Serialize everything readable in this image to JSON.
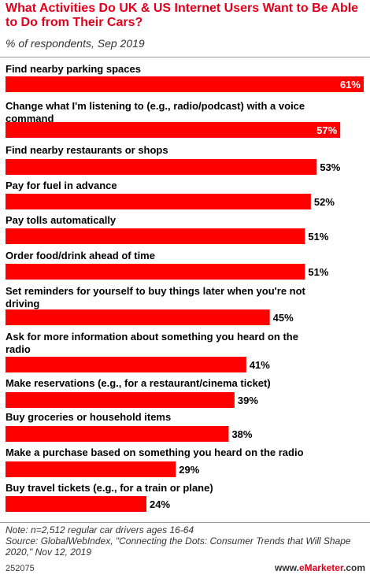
{
  "header": {
    "title": "What Activities Do UK & US Internet Users Want to Be Able to Do from Their Cars?",
    "subtitle": "% of respondents, Sep 2019"
  },
  "chart_data": {
    "type": "bar",
    "orientation": "horizontal",
    "title": "What Activities Do UK & US Internet Users Want to Be Able to Do from Their Cars?",
    "subtitle": "% of respondents, Sep 2019",
    "categories": [
      "Find nearby parking spaces",
      "Change what I'm listening to (e.g., radio/podcast) with a voice command",
      "Find nearby restaurants or shops",
      "Pay for fuel in advance",
      "Pay tolls automatically",
      "Order food/drink ahead of time",
      "Set reminders for yourself to buy things later when you're not driving",
      "Ask for more information about something you heard on the radio",
      "Make reservations (e.g., for a restaurant/cinema ticket)",
      "Buy groceries or household items",
      "Make a purchase based on something you heard on the radio",
      "Buy travel tickets (e.g., for a train or plane)"
    ],
    "values": [
      61,
      57,
      53,
      52,
      51,
      51,
      45,
      41,
      39,
      38,
      29,
      24
    ],
    "value_labels": [
      "61%",
      "57%",
      "53%",
      "52%",
      "51%",
      "51%",
      "45%",
      "41%",
      "39%",
      "38%",
      "29%",
      "24%"
    ],
    "xlim": [
      0,
      61
    ],
    "bar_color": "#ff0000",
    "grid": false
  },
  "footer": {
    "note": "Note: n=2,512 regular car drivers ages 16-64",
    "source": "Source: GlobalWebIndex, \"Connecting the Dots: Consumer Trends that Will Shape 2020,\" Nov 12, 2019",
    "chart_id": "252075",
    "brand_prefix": "www.",
    "brand_accent": "eMarketer",
    "brand_suffix": ".com"
  },
  "colors": {
    "title": "#e2001a",
    "bar": "#ff0000",
    "label_inside": "#ffffff",
    "label_outside": "#000000"
  }
}
